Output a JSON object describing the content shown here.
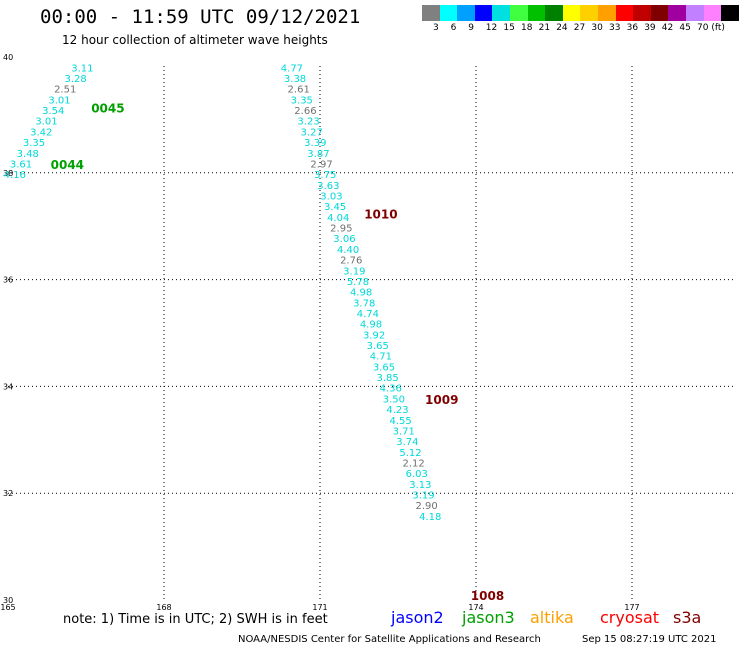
{
  "chart_data": {
    "type": "scatter",
    "title": "00:00 - 11:59 UTC 09/12/2021",
    "subtitle": "12 hour collection of altimeter wave heights",
    "xlabel": "",
    "ylabel": "",
    "xlim": [
      165,
      179
    ],
    "ylim": [
      30,
      40
    ],
    "x_ticks": [
      165,
      168,
      171,
      174,
      177
    ],
    "y_ticks": [
      30,
      32,
      34,
      36,
      38,
      40
    ],
    "grid": true,
    "legend_colorbar": {
      "colors": [
        "#808080",
        "#00ffff",
        "#00a0ff",
        "#0000ff",
        "#00e0e0",
        "#40ff40",
        "#00c000",
        "#008000",
        "#ffff00",
        "#ffd000",
        "#ffa000",
        "#ff0000",
        "#c00000",
        "#800000",
        "#a000a0",
        "#c080ff",
        "#ff80ff",
        "#000000"
      ],
      "labels": [
        "3",
        "6",
        "9",
        "12",
        "15",
        "18",
        "21",
        "24",
        "27",
        "30",
        "33",
        "36",
        "39",
        "42",
        "45",
        "70 (ft)"
      ]
    },
    "series": [
      {
        "name": "jason3",
        "color": "#00a000",
        "points": [
          {
            "x": 166.43,
            "y": 39.9,
            "v": "3.11",
            "c": "#00d8d8"
          },
          {
            "x": 166.3,
            "y": 39.7,
            "v": "3.28",
            "c": "#00d8d8"
          },
          {
            "x": 166.1,
            "y": 39.5,
            "v": "2.51",
            "c": "#707070"
          },
          {
            "x": 165.99,
            "y": 39.3,
            "v": "3.01",
            "c": "#00d8d8"
          },
          {
            "x": 165.87,
            "y": 39.1,
            "v": "3.54",
            "c": "#00d8d8"
          },
          {
            "x": 165.74,
            "y": 38.9,
            "v": "3.01",
            "c": "#00d8d8"
          },
          {
            "x": 165.64,
            "y": 38.7,
            "v": "3.42",
            "c": "#00d8d8"
          },
          {
            "x": 165.5,
            "y": 38.5,
            "v": "3.35",
            "c": "#00d8d8"
          },
          {
            "x": 165.38,
            "y": 38.3,
            "v": "3.48",
            "c": "#00d8d8"
          },
          {
            "x": 165.25,
            "y": 38.1,
            "v": "3.61",
            "c": "#00d8d8"
          },
          {
            "x": 165.13,
            "y": 37.9,
            "v": "4.16",
            "c": "#00d8d8"
          }
        ]
      },
      {
        "name": "jason3",
        "color": "#00a000",
        "points": [
          {
            "x": 170.46,
            "y": 39.9,
            "v": "4.77",
            "c": "#00d8d8"
          },
          {
            "x": 170.52,
            "y": 39.7,
            "v": "3.38",
            "c": "#00d8d8"
          },
          {
            "x": 170.59,
            "y": 39.5,
            "v": "2.61",
            "c": "#707070"
          },
          {
            "x": 170.65,
            "y": 39.3,
            "v": "3.35",
            "c": "#00d8d8"
          },
          {
            "x": 170.72,
            "y": 39.1,
            "v": "2.66",
            "c": "#707070"
          },
          {
            "x": 170.78,
            "y": 38.9,
            "v": "3.23",
            "c": "#00d8d8"
          },
          {
            "x": 170.84,
            "y": 38.7,
            "v": "3.27",
            "c": "#00d8d8"
          },
          {
            "x": 170.91,
            "y": 38.5,
            "v": "3.39",
            "c": "#00d8d8"
          },
          {
            "x": 170.97,
            "y": 38.3,
            "v": "3.87",
            "c": "#00d8d8"
          },
          {
            "x": 171.03,
            "y": 38.1,
            "v": "2.97",
            "c": "#707070"
          },
          {
            "x": 171.1,
            "y": 37.9,
            "v": "3.75",
            "c": "#00d8d8"
          },
          {
            "x": 171.16,
            "y": 37.7,
            "v": "3.63",
            "c": "#00d8d8"
          },
          {
            "x": 171.22,
            "y": 37.5,
            "v": "3.03",
            "c": "#00d8d8"
          },
          {
            "x": 171.29,
            "y": 37.3,
            "v": "3.45",
            "c": "#00d8d8"
          },
          {
            "x": 171.35,
            "y": 37.1,
            "v": "4.04",
            "c": "#00d8d8"
          },
          {
            "x": 171.41,
            "y": 36.9,
            "v": "2.95",
            "c": "#707070"
          },
          {
            "x": 171.47,
            "y": 36.7,
            "v": "3.06",
            "c": "#00d8d8"
          },
          {
            "x": 171.54,
            "y": 36.5,
            "v": "4.40",
            "c": "#00d8d8"
          },
          {
            "x": 171.6,
            "y": 36.3,
            "v": "2.76",
            "c": "#707070"
          },
          {
            "x": 171.66,
            "y": 36.1,
            "v": "3.19",
            "c": "#00d8d8"
          },
          {
            "x": 171.73,
            "y": 35.9,
            "v": "5.78",
            "c": "#00d8d8"
          },
          {
            "x": 171.79,
            "y": 35.7,
            "v": "4.98",
            "c": "#00d8d8"
          },
          {
            "x": 171.85,
            "y": 35.5,
            "v": "3.78",
            "c": "#00d8d8"
          },
          {
            "x": 171.92,
            "y": 35.3,
            "v": "4.74",
            "c": "#00d8d8"
          },
          {
            "x": 171.98,
            "y": 35.1,
            "v": "4.98",
            "c": "#00d8d8"
          },
          {
            "x": 172.04,
            "y": 34.9,
            "v": "3.92",
            "c": "#00d8d8"
          },
          {
            "x": 172.11,
            "y": 34.7,
            "v": "3.65",
            "c": "#00d8d8"
          },
          {
            "x": 172.17,
            "y": 34.5,
            "v": "4.71",
            "c": "#00d8d8"
          },
          {
            "x": 172.23,
            "y": 34.3,
            "v": "3.65",
            "c": "#00d8d8"
          },
          {
            "x": 172.3,
            "y": 34.1,
            "v": "3.85",
            "c": "#00d8d8"
          },
          {
            "x": 172.36,
            "y": 33.9,
            "v": "4.36",
            "c": "#00d8d8"
          },
          {
            "x": 172.42,
            "y": 33.7,
            "v": "3.50",
            "c": "#00d8d8"
          },
          {
            "x": 172.49,
            "y": 33.5,
            "v": "4.23",
            "c": "#00d8d8"
          },
          {
            "x": 172.55,
            "y": 33.3,
            "v": "4.55",
            "c": "#00d8d8"
          },
          {
            "x": 172.61,
            "y": 33.1,
            "v": "3.71",
            "c": "#00d8d8"
          },
          {
            "x": 172.68,
            "y": 32.9,
            "v": "3.74",
            "c": "#00d8d8"
          },
          {
            "x": 172.74,
            "y": 32.7,
            "v": "5.12",
            "c": "#00d8d8"
          },
          {
            "x": 172.8,
            "y": 32.5,
            "v": "2.12",
            "c": "#707070"
          },
          {
            "x": 172.86,
            "y": 32.3,
            "v": "6.03",
            "c": "#00d8d8"
          },
          {
            "x": 172.93,
            "y": 32.1,
            "v": "3.13",
            "c": "#00d8d8"
          },
          {
            "x": 172.99,
            "y": 31.9,
            "v": "3.19",
            "c": "#00d8d8"
          },
          {
            "x": 173.05,
            "y": 31.7,
            "v": "2.90",
            "c": "#707070"
          },
          {
            "x": 173.12,
            "y": 31.5,
            "v": "4.18",
            "c": "#00d8d8"
          }
        ]
      }
    ],
    "time_labels": [
      {
        "x": 166.6,
        "y": 39.13,
        "text": "0045",
        "color": "#00a000"
      },
      {
        "x": 165.82,
        "y": 38.07,
        "text": "0044",
        "color": "#00a000"
      },
      {
        "x": 171.85,
        "y": 37.14,
        "text": "1010",
        "color": "#800000"
      },
      {
        "x": 173.02,
        "y": 33.67,
        "text": "1009",
        "color": "#800000"
      },
      {
        "x": 173.9,
        "y": 30.0,
        "text": "1008",
        "color": "#800000"
      }
    ]
  },
  "note": "note: 1) Time is in UTC; 2) SWH is in feet",
  "satellites": [
    {
      "name": "jason2",
      "color": "#0000ff"
    },
    {
      "name": "jason3",
      "color": "#00a000"
    },
    {
      "name": "altika",
      "color": "#ffa000"
    },
    {
      "name": "cryosat",
      "color": "#ff0000"
    },
    {
      "name": "s3a",
      "color": "#800000"
    }
  ],
  "footer": "NOAA/NESDIS Center for Satellite Applications and Research",
  "footer_date": "Sep 15 08:27:19 UTC 2021"
}
